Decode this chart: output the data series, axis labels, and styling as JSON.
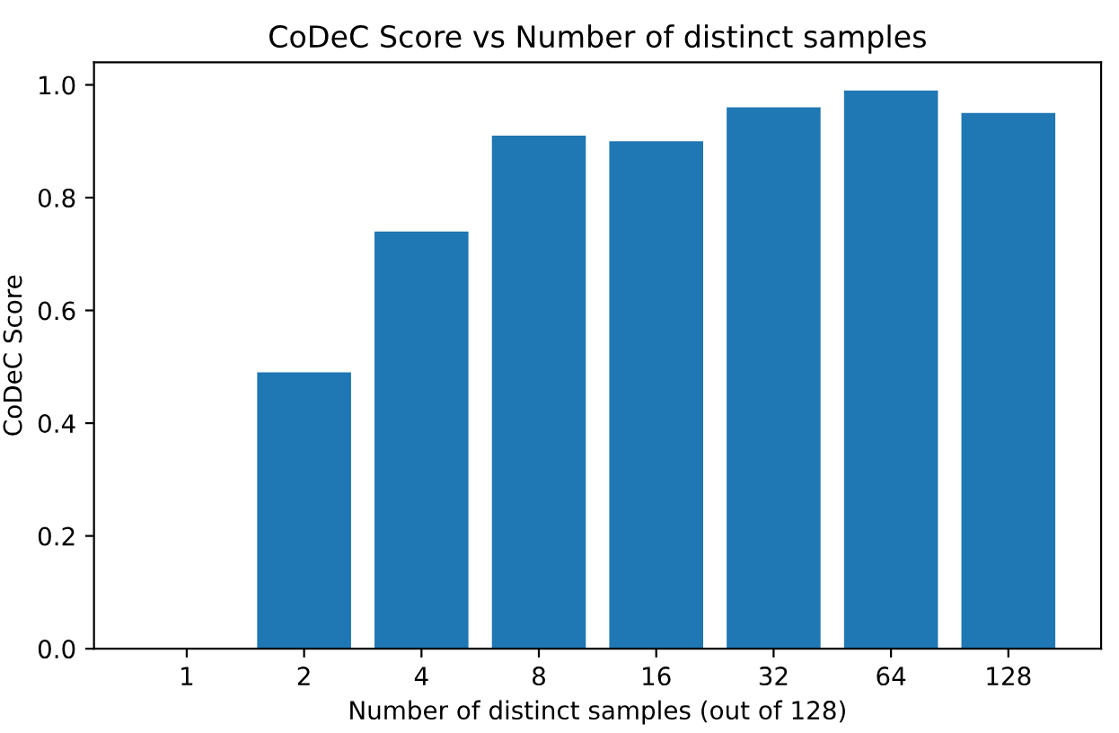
{
  "chart_data": {
    "type": "bar",
    "title": "CoDeC Score vs Number of distinct samples",
    "xlabel": "Number of distinct samples (out of 128)",
    "ylabel": "CoDeC Score",
    "categories": [
      "1",
      "2",
      "4",
      "8",
      "16",
      "32",
      "64",
      "128"
    ],
    "values": [
      0,
      0.49,
      0.74,
      0.91,
      0.9,
      0.96,
      0.99,
      0.95
    ],
    "color": "#1f77b4",
    "ylim": [
      0,
      1.04
    ],
    "yticks": [
      {
        "value": 0,
        "label": "0.0"
      },
      0.2,
      0.4,
      0.6,
      0.8,
      {
        "value": 1,
        "label": "1.0"
      }
    ],
    "grid": false,
    "legend": false
  }
}
